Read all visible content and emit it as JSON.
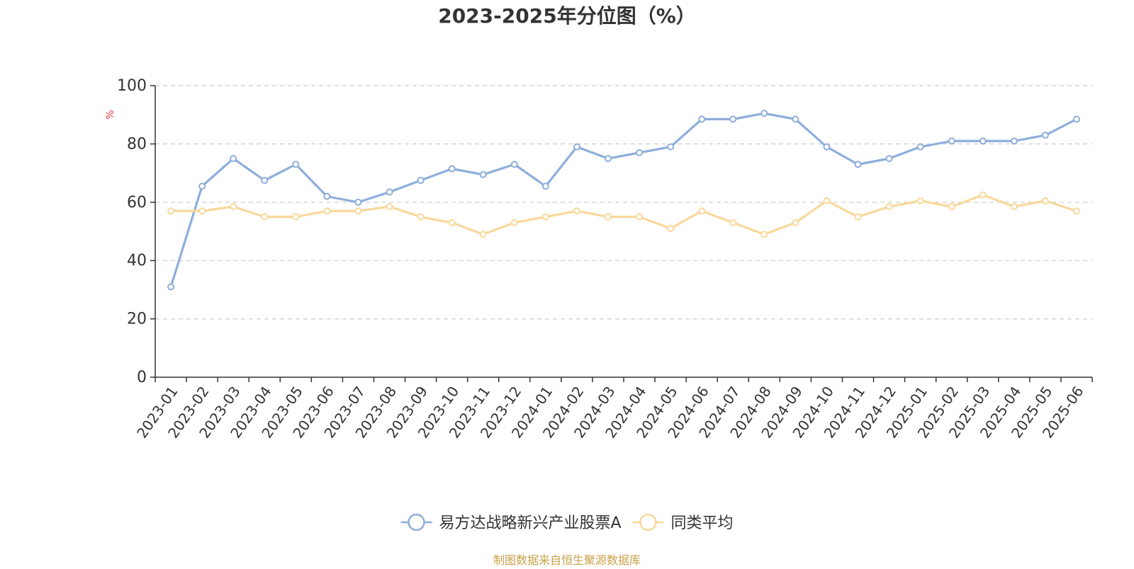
{
  "chart_data": {
    "type": "line",
    "title": "2023-2025年分位图（%）",
    "ylabel": "%",
    "xlabel": "",
    "ylim": [
      0,
      100
    ],
    "yticks": [
      0,
      20,
      40,
      60,
      80,
      100
    ],
    "grid": true,
    "legend_position": "bottom-center",
    "categories": [
      "2023-01",
      "2023-02",
      "2023-03",
      "2023-04",
      "2023-05",
      "2023-06",
      "2023-07",
      "2023-08",
      "2023-09",
      "2023-10",
      "2023-11",
      "2023-12",
      "2024-01",
      "2024-02",
      "2024-03",
      "2024-04",
      "2024-05",
      "2024-06",
      "2024-07",
      "2024-08",
      "2024-09",
      "2024-10",
      "2024-11",
      "2024-12",
      "2025-01",
      "2025-02",
      "2025-03",
      "2025-04",
      "2025-05",
      "2025-06"
    ],
    "series": [
      {
        "name": "易方达战略新兴产业股票A",
        "color": "#8eaedb",
        "values": [
          31,
          65.5,
          75,
          67.5,
          73,
          62,
          60,
          63.5,
          67.5,
          71.5,
          69.5,
          73,
          65.5,
          79,
          75,
          77,
          79,
          88.5,
          88.5,
          90.5,
          88.5,
          79,
          73,
          75,
          79,
          81,
          81,
          81,
          83,
          88.5
        ]
      },
      {
        "name": "同类平均",
        "color": "#f9d89b",
        "values": [
          57,
          57,
          58.5,
          55,
          55,
          57,
          57,
          58.5,
          55,
          53,
          49,
          53,
          55,
          57,
          55,
          55,
          51,
          57,
          53,
          49,
          53,
          60.5,
          55,
          58.5,
          60.5,
          58.5,
          62.5,
          58.5,
          60.5,
          57
        ]
      }
    ]
  },
  "footer": {
    "source": "制图数据来自恒生聚源数据库",
    "source_color": "#c9a14a"
  }
}
